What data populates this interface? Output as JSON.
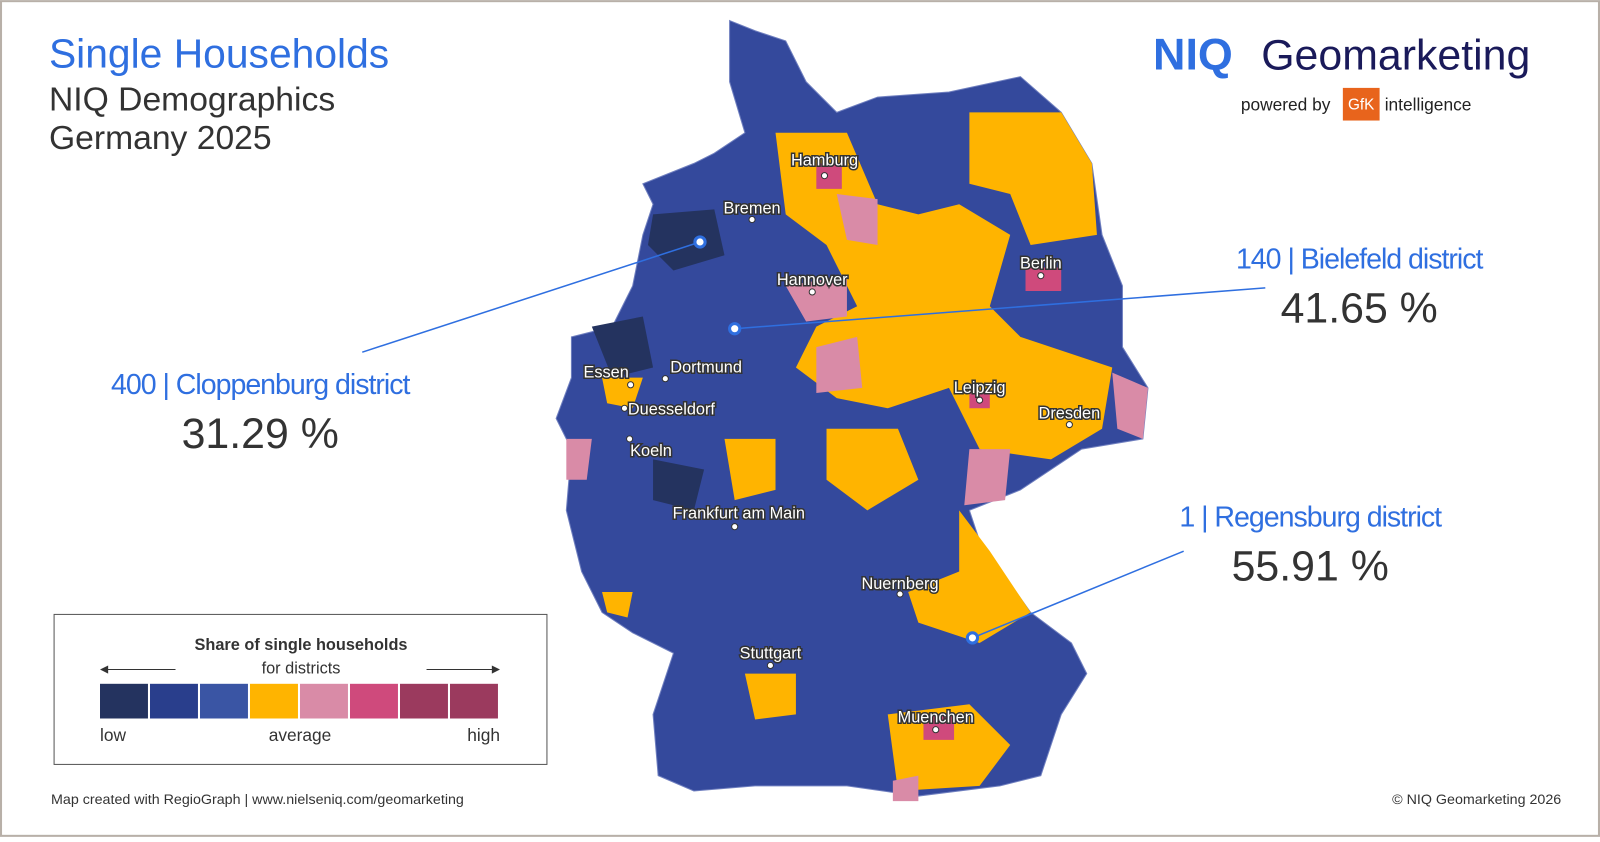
{
  "header": {
    "title": "Single Households",
    "subtitle": "NIQ Demographics",
    "period": "Germany 2025"
  },
  "brand": {
    "name_bold": "NIQ",
    "name": "Geomarketing",
    "powered_by": "powered by",
    "partner": "GfK",
    "partner_suffix": "intelligence"
  },
  "callouts": [
    {
      "label": "400 | Cloppenburg district",
      "value": "31.29 %"
    },
    {
      "label": "140 | Bielefeld district",
      "value": "41.65 %"
    },
    {
      "label": "1 | Regensburg district",
      "value": "55.91 %"
    }
  ],
  "cities": [
    "Hamburg",
    "Bremen",
    "Hannover",
    "Berlin",
    "Essen",
    "Dortmund",
    "Duesseldorf",
    "Koeln",
    "Leipzig",
    "Dresden",
    "Frankfurt am Main",
    "Nuernberg",
    "Stuttgart",
    "Muenchen"
  ],
  "legend": {
    "title": "Share of single households",
    "subtitle": "for districts",
    "colors": [
      "#24335f",
      "#293e8c",
      "#3a55a4",
      "#ffb400",
      "#d98ba7",
      "#cf4a7c",
      "#9b3a5e",
      "#9b3a5e"
    ],
    "low": "low",
    "average": "average",
    "high": "high"
  },
  "footer": {
    "credit": "Map created with RegioGraph | www.nielseniq.com/geomarketing",
    "copyright": "© NIQ Geomarketing 2026"
  }
}
